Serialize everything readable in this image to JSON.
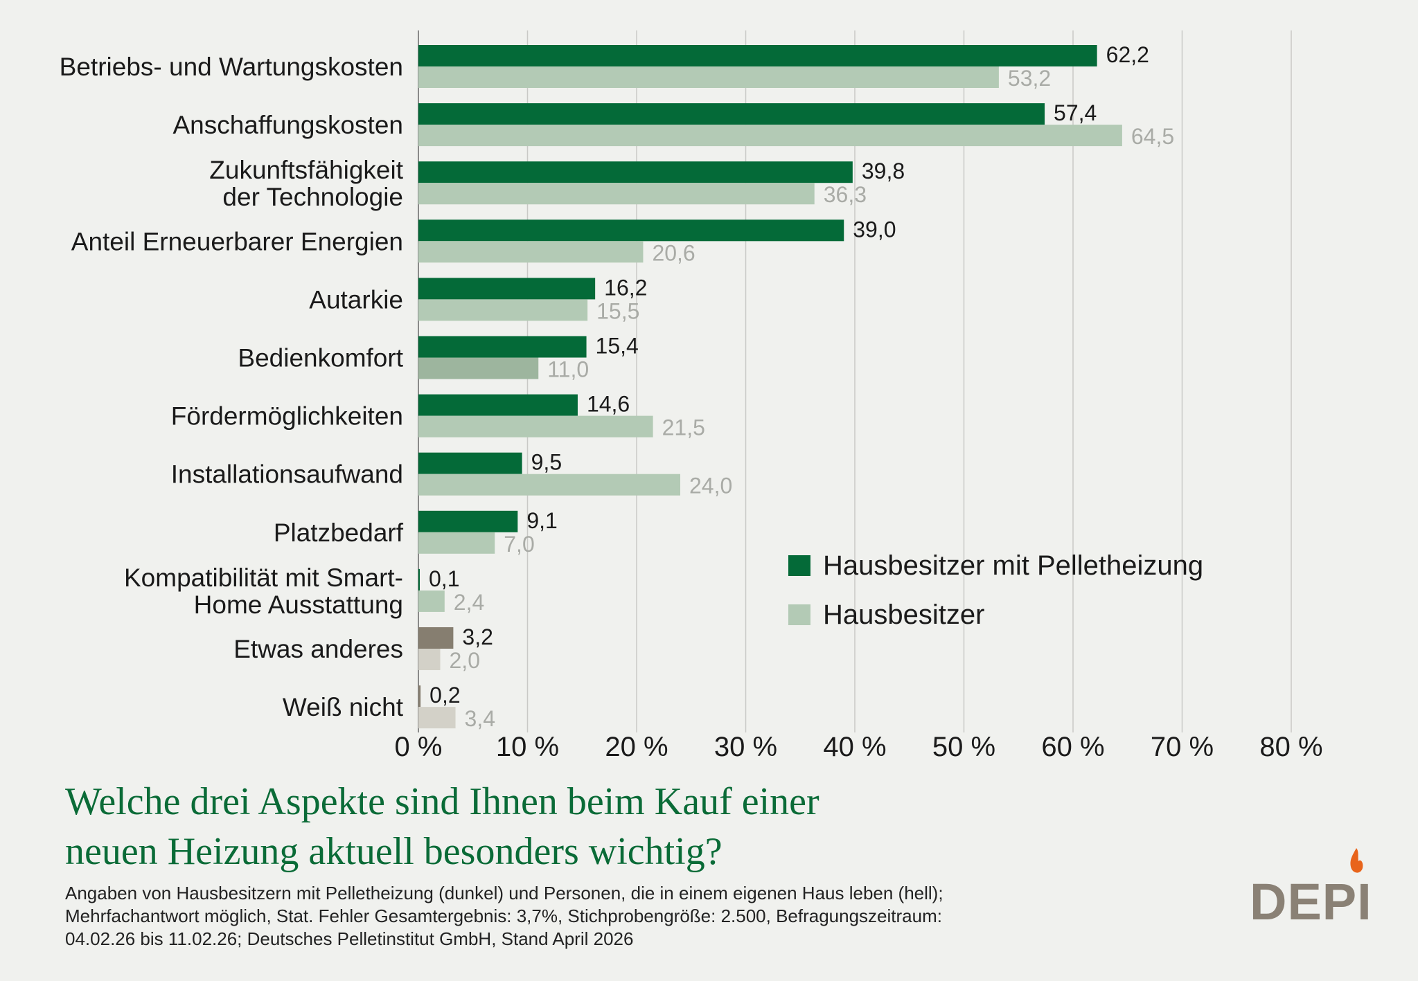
{
  "chart_data": {
    "type": "bar",
    "orientation": "horizontal",
    "categories": [
      [
        "Betriebs- und Wartungskosten"
      ],
      [
        "Anschaffungskosten"
      ],
      [
        "Zukunftsfähigkeit",
        "der Technologie"
      ],
      [
        "Anteil Erneuerbarer Energien"
      ],
      [
        "Autarkie"
      ],
      [
        "Bedienkomfort"
      ],
      [
        "Fördermöglichkeiten"
      ],
      [
        "Installationsaufwand"
      ],
      [
        "Platzbedarf"
      ],
      [
        "Kompatibilität mit Smart-",
        "Home Ausstattung"
      ],
      [
        "Etwas anderes"
      ],
      [
        "Weiß nicht"
      ]
    ],
    "series": [
      {
        "name": "Hausbesitzer mit Pelletheizung",
        "values": [
          62.2,
          57.4,
          39.8,
          39.0,
          16.2,
          15.4,
          14.6,
          9.5,
          9.1,
          0.1,
          3.2,
          0.2
        ],
        "labels": [
          "62,2",
          "57,4",
          "39,8",
          "39,0",
          "16,2",
          "15,4",
          "14,6",
          "9,5",
          "9,1",
          "0,1",
          "3,2",
          "0,2"
        ],
        "color": "#046a38"
      },
      {
        "name": "Hausbesitzer",
        "values": [
          53.2,
          64.5,
          36.3,
          20.6,
          15.5,
          11.0,
          21.5,
          24.0,
          7.0,
          2.4,
          2.0,
          3.4
        ],
        "labels": [
          "53,2",
          "64,5",
          "36,3",
          "20,6",
          "15,5",
          "11,0",
          "21,5",
          "24,0",
          "7,0",
          "2,4",
          "2,0",
          "3,4"
        ],
        "color": "#b3cab5"
      }
    ],
    "bar_colors_override": {
      "5": {
        "light": "#9db59e"
      },
      "10": {
        "dark": "#867e70",
        "light": "#d3d1c8"
      },
      "11": {
        "dark": "#867e70",
        "light": "#d3d1c8"
      }
    },
    "xlim": [
      0,
      80
    ],
    "xticks": [
      0,
      10,
      20,
      30,
      40,
      50,
      60,
      70,
      80
    ],
    "xtick_labels": [
      "0 %",
      "10 %",
      "20 %",
      "30 %",
      "40 %",
      "50 %",
      "60 %",
      "70 %",
      "80 %"
    ],
    "grid": true,
    "legend_position": "right",
    "title": "Welche drei Aspekte sind Ihnen beim Kauf einer neuen Heizung aktuell besonders wichtig?"
  },
  "title_lines": [
    "Welche drei Aspekte sind Ihnen beim Kauf einer",
    "neuen Heizung aktuell besonders wichtig?"
  ],
  "notes": [
    "Angaben von Hausbesitzern mit Pelletheizung (dunkel) und Personen, die in einem eigenen Haus leben (hell);",
    "Mehrfachantwort möglich, Stat. Fehler Gesamtergebnis: 3,7%, Stichprobengröße: 2.500, Befragungszeitraum:",
    "04.02.26 bis 11.02.26; Deutsches Pelletinstitut GmbH, Stand April 2026"
  ],
  "logo": {
    "text": "DEPI",
    "accent_color": "#e8641b",
    "text_color": "#8a8175"
  }
}
